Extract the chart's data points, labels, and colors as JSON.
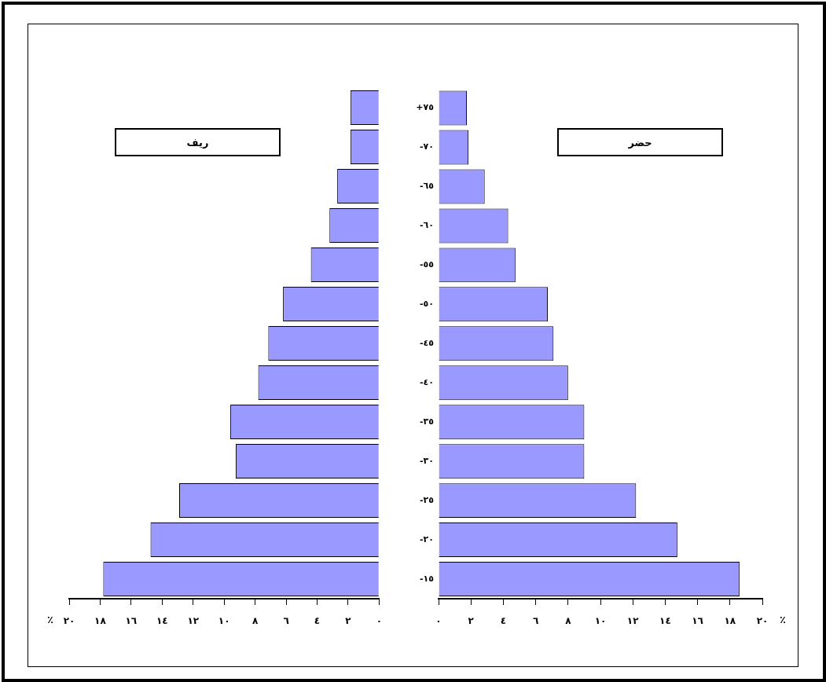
{
  "chart_data": [
    {
      "type": "bar",
      "orientation": "horizontal",
      "title": "ريف",
      "xlabel": "٪",
      "categories": [
        "+٧٥",
        "-٧٠",
        "-٦٥",
        "-٦٠",
        "-٥٥",
        "-٥٠",
        "-٤٥",
        "-٤٠",
        "-٣٥",
        "-٣٠",
        "-٢٥",
        "-٢٠",
        "-١٥"
      ],
      "values": [
        1.85,
        1.85,
        2.7,
        3.2,
        4.4,
        6.2,
        7.15,
        7.8,
        9.6,
        9.25,
        12.9,
        14.75,
        17.8
      ],
      "color": "#9999ff",
      "xlim": [
        20,
        0
      ],
      "xticks": [
        {
          "value": 20,
          "label": "٢٠"
        },
        {
          "value": 18,
          "label": "١٨"
        },
        {
          "value": 16,
          "label": "١٦"
        },
        {
          "value": 14,
          "label": "١٤"
        },
        {
          "value": 12,
          "label": "١٢"
        },
        {
          "value": 10,
          "label": "١٠"
        },
        {
          "value": 8,
          "label": "٨"
        },
        {
          "value": 6,
          "label": "٦"
        },
        {
          "value": 4,
          "label": "٤"
        },
        {
          "value": 2,
          "label": "٢"
        },
        {
          "value": 0,
          "label": "٠"
        }
      ],
      "tick_labels": "x",
      "grid": false,
      "legend": false
    },
    {
      "type": "bar",
      "orientation": "horizontal",
      "title": "حضر",
      "xlabel": "٪",
      "categories": [
        "+٧٥",
        "-٧٠",
        "-٦٥",
        "-٦٠",
        "-٥٥",
        "-٥٠",
        "-٤٥",
        "-٤٠",
        "-٣٥",
        "-٣٠",
        "-٢٥",
        "-٢٠",
        "-١٥"
      ],
      "values": [
        1.75,
        1.85,
        2.85,
        4.3,
        4.75,
        6.75,
        7.1,
        8.0,
        9.0,
        9.0,
        12.2,
        14.75,
        18.6
      ],
      "color": "#9999ff",
      "xlim": [
        0,
        20
      ],
      "xticks": [
        {
          "value": 0,
          "label": "٠"
        },
        {
          "value": 2,
          "label": "٢"
        },
        {
          "value": 4,
          "label": "٤"
        },
        {
          "value": 6,
          "label": "٦"
        },
        {
          "value": 8,
          "label": "٨"
        },
        {
          "value": 10,
          "label": "١٠"
        },
        {
          "value": 12,
          "label": "١٢"
        },
        {
          "value": 14,
          "label": "١٤"
        },
        {
          "value": 16,
          "label": "١٦"
        },
        {
          "value": 18,
          "label": "١٨"
        },
        {
          "value": 20,
          "label": "٢٠"
        }
      ],
      "grid": false,
      "legend": false
    }
  ]
}
